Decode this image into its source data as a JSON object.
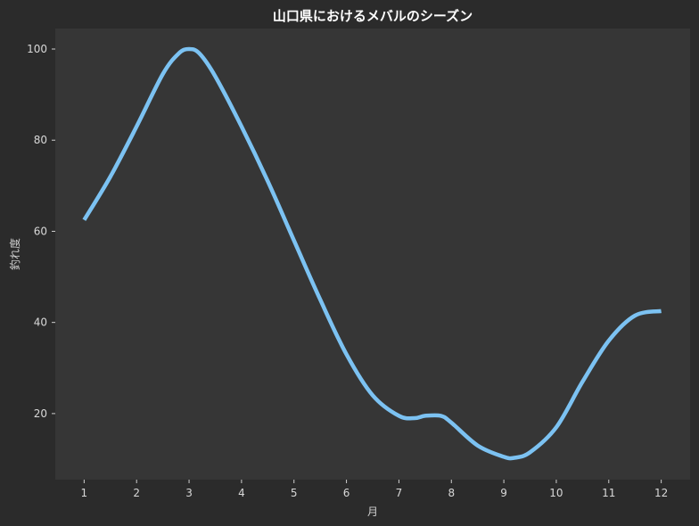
{
  "chart_data": {
    "type": "line",
    "title": "山口県におけるメバルのシーズン",
    "xlabel": "月",
    "ylabel": "釣れ度",
    "x": [
      1,
      2,
      3,
      4,
      5,
      6,
      7,
      8,
      9,
      10,
      11,
      12
    ],
    "x_ticks": [
      "1",
      "2",
      "3",
      "4",
      "5",
      "6",
      "7",
      "8",
      "9",
      "10",
      "11",
      "12"
    ],
    "y_ticks": [
      "20",
      "40",
      "60",
      "80",
      "100"
    ],
    "xlim": [
      0.45,
      12.55
    ],
    "ylim": [
      5.5,
      104.5
    ],
    "grid": false,
    "series": [
      {
        "color": "#7cc2f2",
        "curve_x": [
          1,
          1.5,
          2,
          2.5,
          2.8,
          3.0,
          3.2,
          3.5,
          4,
          4.5,
          5,
          5.5,
          6,
          6.5,
          7,
          7.3,
          7.5,
          7.8,
          8,
          8.5,
          9,
          9.2,
          9.5,
          10,
          10.5,
          11,
          11.5,
          12
        ],
        "curve_y": [
          62.5,
          72,
          83,
          94.5,
          99,
          100,
          99,
          94,
          83,
          71,
          58,
          45,
          33,
          24,
          19.5,
          19,
          19.5,
          19.5,
          18,
          13,
          10.5,
          10.3,
          11.5,
          17,
          27,
          36,
          41.5,
          42.5
        ]
      }
    ]
  },
  "colors": {
    "page_background": "#2b2b2b",
    "plot_background": "#363636",
    "line": "#7cc2f2",
    "text": "#d8d8d8",
    "title": "#ffffff"
  }
}
